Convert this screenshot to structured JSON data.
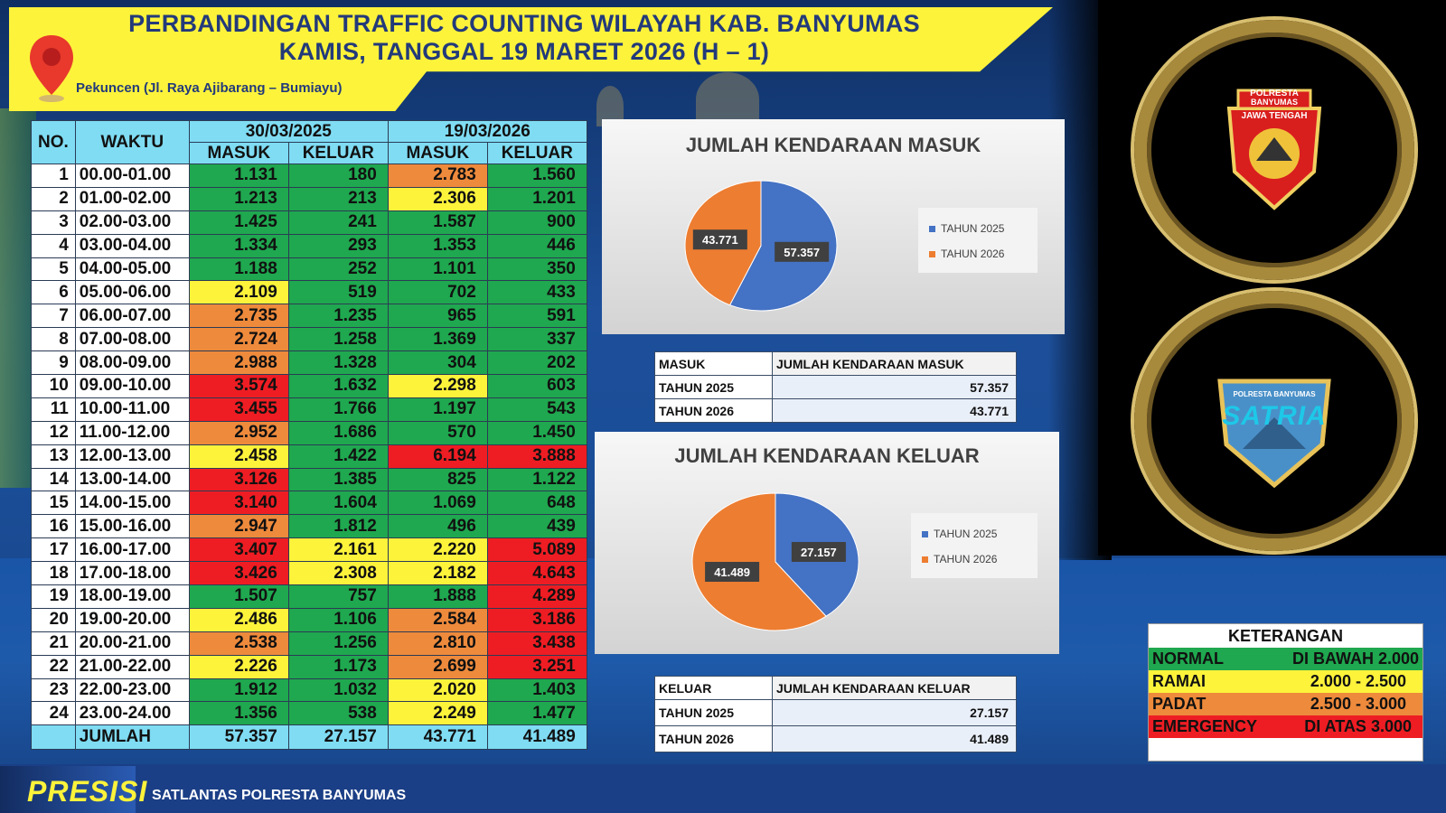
{
  "header": {
    "title_line1": "PERBANDINGAN TRAFFIC COUNTING WILAYAH KAB. BANYUMAS",
    "title_line2": "KAMIS, TANGGAL 19 MARET 2026 (H – 1)",
    "location": "Pekuncen (Jl. Raya Ajibarang – Bumiayu)"
  },
  "table": {
    "col_no": "NO.",
    "col_time": "WAKTU",
    "date_2025": "30/03/2025",
    "date_2026": "19/03/2026",
    "masuk": "MASUK",
    "keluar": "KELUAR",
    "rows": [
      {
        "no": "1",
        "time": "00.00-01.00",
        "m25": "1.131",
        "k25": "180",
        "m26": "2.783",
        "k26": "1.560"
      },
      {
        "no": "2",
        "time": "01.00-02.00",
        "m25": "1.213",
        "k25": "213",
        "m26": "2.306",
        "k26": "1.201"
      },
      {
        "no": "3",
        "time": "02.00-03.00",
        "m25": "1.425",
        "k25": "241",
        "m26": "1.587",
        "k26": "900"
      },
      {
        "no": "4",
        "time": "03.00-04.00",
        "m25": "1.334",
        "k25": "293",
        "m26": "1.353",
        "k26": "446"
      },
      {
        "no": "5",
        "time": "04.00-05.00",
        "m25": "1.188",
        "k25": "252",
        "m26": "1.101",
        "k26": "350"
      },
      {
        "no": "6",
        "time": "05.00-06.00",
        "m25": "2.109",
        "k25": "519",
        "m26": "702",
        "k26": "433"
      },
      {
        "no": "7",
        "time": "06.00-07.00",
        "m25": "2.735",
        "k25": "1.235",
        "m26": "965",
        "k26": "591"
      },
      {
        "no": "8",
        "time": "07.00-08.00",
        "m25": "2.724",
        "k25": "1.258",
        "m26": "1.369",
        "k26": "337"
      },
      {
        "no": "9",
        "time": "08.00-09.00",
        "m25": "2.988",
        "k25": "1.328",
        "m26": "304",
        "k26": "202"
      },
      {
        "no": "10",
        "time": "09.00-10.00",
        "m25": "3.574",
        "k25": "1.632",
        "m26": "2.298",
        "k26": "603"
      },
      {
        "no": "11",
        "time": "10.00-11.00",
        "m25": "3.455",
        "k25": "1.766",
        "m26": "1.197",
        "k26": "543"
      },
      {
        "no": "12",
        "time": "11.00-12.00",
        "m25": "2.952",
        "k25": "1.686",
        "m26": "570",
        "k26": "1.450"
      },
      {
        "no": "13",
        "time": "12.00-13.00",
        "m25": "2.458",
        "k25": "1.422",
        "m26": "6.194",
        "k26": "3.888"
      },
      {
        "no": "14",
        "time": "13.00-14.00",
        "m25": "3.126",
        "k25": "1.385",
        "m26": "825",
        "k26": "1.122"
      },
      {
        "no": "15",
        "time": "14.00-15.00",
        "m25": "3.140",
        "k25": "1.604",
        "m26": "1.069",
        "k26": "648"
      },
      {
        "no": "16",
        "time": "15.00-16.00",
        "m25": "2.947",
        "k25": "1.812",
        "m26": "496",
        "k26": "439"
      },
      {
        "no": "17",
        "time": "16.00-17.00",
        "m25": "3.407",
        "k25": "2.161",
        "m26": "2.220",
        "k26": "5.089"
      },
      {
        "no": "18",
        "time": "17.00-18.00",
        "m25": "3.426",
        "k25": "2.308",
        "m26": "2.182",
        "k26": "4.643"
      },
      {
        "no": "19",
        "time": "18.00-19.00",
        "m25": "1.507",
        "k25": "757",
        "m26": "1.888",
        "k26": "4.289"
      },
      {
        "no": "20",
        "time": "19.00-20.00",
        "m25": "2.486",
        "k25": "1.106",
        "m26": "2.584",
        "k26": "3.186"
      },
      {
        "no": "21",
        "time": "20.00-21.00",
        "m25": "2.538",
        "k25": "1.256",
        "m26": "2.810",
        "k26": "3.438"
      },
      {
        "no": "22",
        "time": "21.00-22.00",
        "m25": "2.226",
        "k25": "1.173",
        "m26": "2.699",
        "k26": "3.251"
      },
      {
        "no": "23",
        "time": "22.00-23.00",
        "m25": "1.912",
        "k25": "1.032",
        "m26": "2.020",
        "k26": "1.403"
      },
      {
        "no": "24",
        "time": "23.00-24.00",
        "m25": "1.356",
        "k25": "538",
        "m26": "2.249",
        "k26": "1.477"
      }
    ],
    "total_label": "JUMLAH",
    "total": {
      "m25": "57.357",
      "k25": "27.157",
      "m26": "43.771",
      "k26": "41.489"
    }
  },
  "chart_data": [
    {
      "type": "pie",
      "title": "JUMLAH KENDARAAN MASUK",
      "categories": [
        "TAHUN 2025",
        "TAHUN 2026"
      ],
      "values": [
        57357,
        43771
      ],
      "value_labels": [
        "57.357",
        "43.771"
      ],
      "colors": [
        "#4472c4",
        "#ed7d31"
      ],
      "legend": "right"
    },
    {
      "type": "pie",
      "title": "JUMLAH KENDARAAN KELUAR",
      "categories": [
        "TAHUN 2025",
        "TAHUN 2026"
      ],
      "values": [
        27157,
        41489
      ],
      "value_labels": [
        "27.157",
        "41.489"
      ],
      "colors": [
        "#4472c4",
        "#ed7d31"
      ],
      "legend": "right"
    }
  ],
  "summary_masuk": {
    "h_left": "MASUK",
    "h_right": "JUMLAH KENDARAAN MASUK",
    "r1_label": "TAHUN 2025",
    "r1_value": "57.357",
    "r2_label": "TAHUN 2026",
    "r2_value": "43.771"
  },
  "summary_keluar": {
    "h_left": "KELUAR",
    "h_right": "JUMLAH KENDARAAN KELUAR",
    "r1_label": "TAHUN 2025",
    "r1_value": "27.157",
    "r2_label": "TAHUN 2026",
    "r2_value": "41.489"
  },
  "keterangan": {
    "title": "KETERANGAN",
    "rows": [
      {
        "status": "NORMAL",
        "range": "DI BAWAH 2.000",
        "color": "#1fa84f"
      },
      {
        "status": "RAMAI",
        "range": "2.000 - 2.500",
        "color": "#fdf33b"
      },
      {
        "status": "PADAT",
        "range": "2.500 - 3.000",
        "color": "#ee8a3c"
      },
      {
        "status": "EMERGENCY",
        "range": "DI ATAS 3.000",
        "color": "#ee1d23"
      }
    ]
  },
  "emblems": {
    "top_line1": "POLRESTA",
    "top_line2": "BANYUMAS",
    "top_line3": "JAWA TENGAH",
    "bottom_line1": "POLRESTA BANYUMAS",
    "bottom_line2": "SATRIA"
  },
  "footer": {
    "logo": "PRESISI",
    "text": "SATLANTAS POLRESTA BANYUMAS"
  }
}
